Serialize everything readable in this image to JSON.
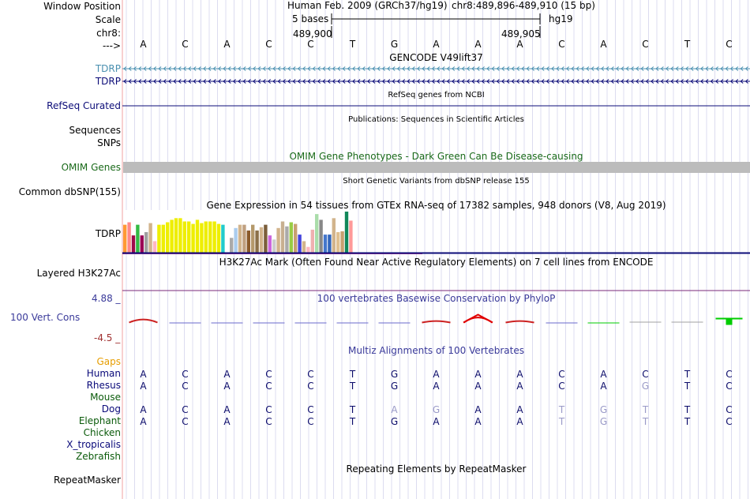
{
  "window_position": {
    "label": "Window Position",
    "assembly": "Human Feb. 2009 (GRCh37/hg19)",
    "range": "chr8:489,896-489,910 (15 bp)"
  },
  "scale": {
    "label": "Scale",
    "size_label": "5 bases",
    "db": "hg19"
  },
  "chrom": {
    "label": "chr8:",
    "pos_left": "489,900",
    "pos_right": "489,905"
  },
  "strand": {
    "label": "--->",
    "bases": [
      "A",
      "C",
      "A",
      "C",
      "C",
      "T",
      "G",
      "A",
      "A",
      "A",
      "C",
      "A",
      "C",
      "T",
      "C"
    ]
  },
  "tracks": {
    "gencode": {
      "title": "GENCODE V49lift37",
      "items": [
        "TDRP",
        "TDRP"
      ]
    },
    "refseq": {
      "title": "RefSeq genes from NCBI",
      "label": "RefSeq Curated"
    },
    "pubs": {
      "title": "Publications: Sequences in Scientific Articles",
      "label1": "Sequences",
      "label2": "SNPs"
    },
    "omim": {
      "title": "OMIM Gene Phenotypes - Dark Green Can Be Disease-causing",
      "label": "OMIM Genes"
    },
    "dbsnp": {
      "title": "Short Genetic Variants from dbSNP release 155",
      "label": "Common dbSNP(155)"
    },
    "gtex": {
      "title": "Gene Expression in 54 tissues from GTEx RNA-seq of 17382 samples, 948 donors (V8, Aug 2019)",
      "label": "TDRP",
      "values": [
        0.68,
        0.74,
        0.42,
        0.68,
        0.42,
        0.5,
        0.72,
        0.28,
        0.68,
        0.68,
        0.74,
        0.8,
        0.84,
        0.84,
        0.76,
        0.76,
        0.7,
        0.8,
        0.72,
        0.76,
        0.76,
        0.76,
        0.7,
        0.68,
        0.0,
        0.36,
        0.6,
        0.68,
        0.68,
        0.54,
        0.68,
        0.54,
        0.62,
        0.68,
        0.42,
        0.32,
        0.6,
        0.76,
        0.64,
        0.74,
        0.7,
        0.44,
        0.28,
        0.14,
        0.56,
        0.94,
        0.8,
        0.44,
        0.44,
        0.84,
        0.5,
        0.52,
        1.0,
        0.78
      ],
      "colors": [
        "#ff9933",
        "#ff8888",
        "#9e0b4a",
        "#33bb44",
        "#990055",
        "#a0a0a0",
        "#d2b48c",
        "#ffb6c1",
        "#eeee00",
        "#eeee00",
        "#eeee00",
        "#eeee00",
        "#eeee00",
        "#eeee00",
        "#eeee00",
        "#eeee00",
        "#eeee00",
        "#eeee00",
        "#eeee00",
        "#eeee00",
        "#eeee00",
        "#eeee00",
        "#eeee00",
        "#22cccc",
        "#ffffff",
        "#aaaaaa",
        "#aaccee",
        "#d2b48c",
        "#c0a080",
        "#8b5a2b",
        "#b5996b",
        "#8b6f47",
        "#d2b48c",
        "#7b5e3b",
        "#cc66dd",
        "#cccccc",
        "#d2b48c",
        "#c8b090",
        "#aaaaaa",
        "#99cc44",
        "#c8a070",
        "#4444dd",
        "#d2b48c",
        "#ffb6c1",
        "#f0b0b0",
        "#aaddaa",
        "#888888",
        "#4477cc",
        "#3366bb",
        "#d2b48c",
        "#e0c090",
        "#c8a070",
        "#11885a",
        "#ff9999"
      ]
    },
    "h3k27ac": {
      "title": "H3K27Ac Mark (Often Found Near Active Regulatory Elements) on 7 cell lines from ENCODE",
      "label": "Layered H3K27Ac"
    },
    "cons": {
      "title": "100 vertebrates Basewise Conservation by PhyloP",
      "label": "100 Vert. Cons",
      "max": "4.88 _",
      "min": "-4.5 _",
      "values": [
        0.6,
        -0.05,
        -0.05,
        -0.05,
        -0.05,
        -0.1,
        -0.12,
        0.3,
        1.0,
        0.3,
        -0.1,
        -0.3,
        0.0,
        0.0,
        -1.0
      ]
    },
    "multiz": {
      "title": "Multiz Alignments of 100 Vertebrates",
      "rows": [
        {
          "name": "Gaps",
          "color": "#e69d00",
          "bases": []
        },
        {
          "name": "Human",
          "color": "#0a0a7a",
          "bases": [
            "A",
            "C",
            "A",
            "C",
            "C",
            "T",
            "G",
            "A",
            "A",
            "A",
            "C",
            "A",
            "C",
            "T",
            "C"
          ]
        },
        {
          "name": "Rhesus",
          "color": "#0a0a7a",
          "bases": [
            "A",
            "C",
            "A",
            "C",
            "C",
            "T",
            "G",
            "A",
            "A",
            "A",
            "C",
            "A",
            "G",
            "T",
            "C"
          ]
        },
        {
          "name": "Mouse",
          "color": "#0a5a0a",
          "bases": []
        },
        {
          "name": "Dog",
          "color": "#0a0a7a",
          "bases": [
            "A",
            "C",
            "A",
            "C",
            "C",
            "T",
            "A",
            "G",
            "A",
            "A",
            "T",
            "G",
            "T",
            "T",
            "C"
          ]
        },
        {
          "name": "Elephant",
          "color": "#0a5a0a",
          "bases": [
            "A",
            "C",
            "A",
            "C",
            "C",
            "T",
            "G",
            "A",
            "A",
            "A",
            "T",
            "G",
            "T",
            "T",
            "C"
          ]
        },
        {
          "name": "Chicken",
          "color": "#0a5a0a",
          "bases": []
        },
        {
          "name": "X_tropicalis",
          "color": "#0a0a7a",
          "bases": []
        },
        {
          "name": "Zebrafish",
          "color": "#0a5a0a",
          "bases": []
        }
      ]
    },
    "rmsk": {
      "title": "Repeating Elements by RepeatMasker",
      "label": "RepeatMasker"
    }
  }
}
